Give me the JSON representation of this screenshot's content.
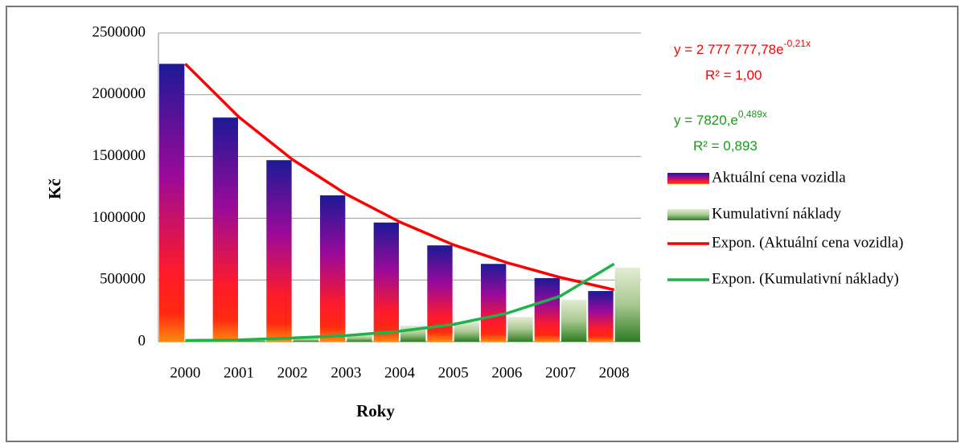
{
  "chart_data": {
    "type": "bar",
    "categories": [
      "2000",
      "2001",
      "2002",
      "2003",
      "2004",
      "2005",
      "2006",
      "2007",
      "2008"
    ],
    "series": [
      {
        "name": "Aktuální cena vozidla",
        "color": "#ff1a1a",
        "values": [
          2250000,
          1815000,
          1470000,
          1185000,
          965000,
          780000,
          630000,
          515000,
          410000
        ]
      },
      {
        "name": "Kumulativní náklady",
        "color": "#2e7d22",
        "values": [
          5000,
          15000,
          30000,
          60000,
          130000,
          160000,
          200000,
          340000,
          600000
        ]
      }
    ],
    "trendlines": [
      {
        "name": "Expon. (Aktuální cena vozidla)",
        "color": "#ff0000",
        "values": [
          2250000,
          1820000,
          1475000,
          1195000,
          970000,
          785000,
          640000,
          520000,
          420000
        ]
      },
      {
        "name": "Expon. (Kumulativní náklady)",
        "color": "#1fb24a",
        "values": [
          10000,
          15000,
          30000,
          50000,
          85000,
          140000,
          230000,
          370000,
          630000
        ]
      }
    ],
    "annotations": [
      {
        "text": "y = 2 777 777,78e",
        "exponent": "-0,21x",
        "color": "#ff0000"
      },
      {
        "text": "R² = 1,00",
        "color": "#ff0000"
      },
      {
        "text": "y = 7820,e",
        "exponent": "0,489x",
        "color": "#1a9a1a"
      },
      {
        "text": "R² = 0,893",
        "color": "#1a9a1a"
      }
    ],
    "xlabel": "Roky",
    "ylabel": "Kč",
    "ylim": [
      0,
      2500000
    ],
    "yticks": [
      0,
      500000,
      1000000,
      1500000,
      2000000,
      2500000
    ],
    "grid": true,
    "legend": "right"
  }
}
